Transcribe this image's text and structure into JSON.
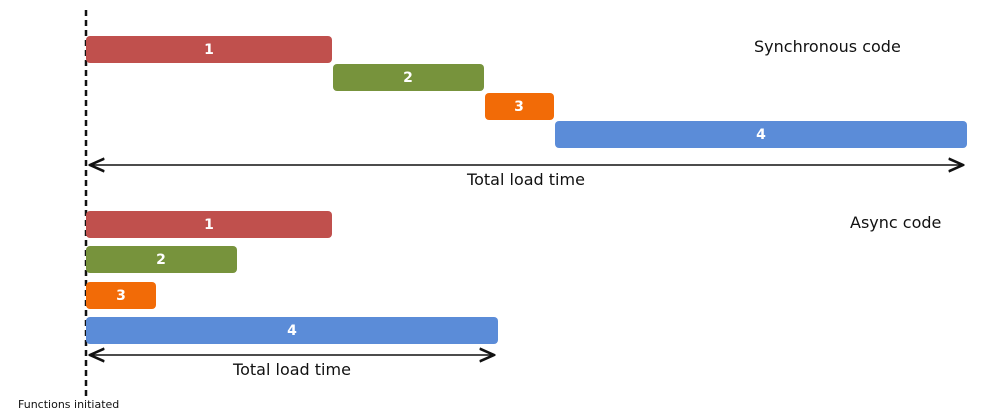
{
  "colors": {
    "task_1": "#c0504d",
    "task_2": "#77933c",
    "task_3": "#f26b07",
    "task_4": "#5b8cd8"
  },
  "sync": {
    "title": "Synchronous code",
    "total_label": "Total load time",
    "tasks": [
      {
        "label": "1"
      },
      {
        "label": "2"
      },
      {
        "label": "3"
      },
      {
        "label": "4"
      }
    ]
  },
  "async": {
    "title": "Async code",
    "total_label": "Total load time",
    "tasks": [
      {
        "label": "1"
      },
      {
        "label": "2"
      },
      {
        "label": "3"
      },
      {
        "label": "4"
      }
    ]
  },
  "footer_label": "Functions initiated"
}
